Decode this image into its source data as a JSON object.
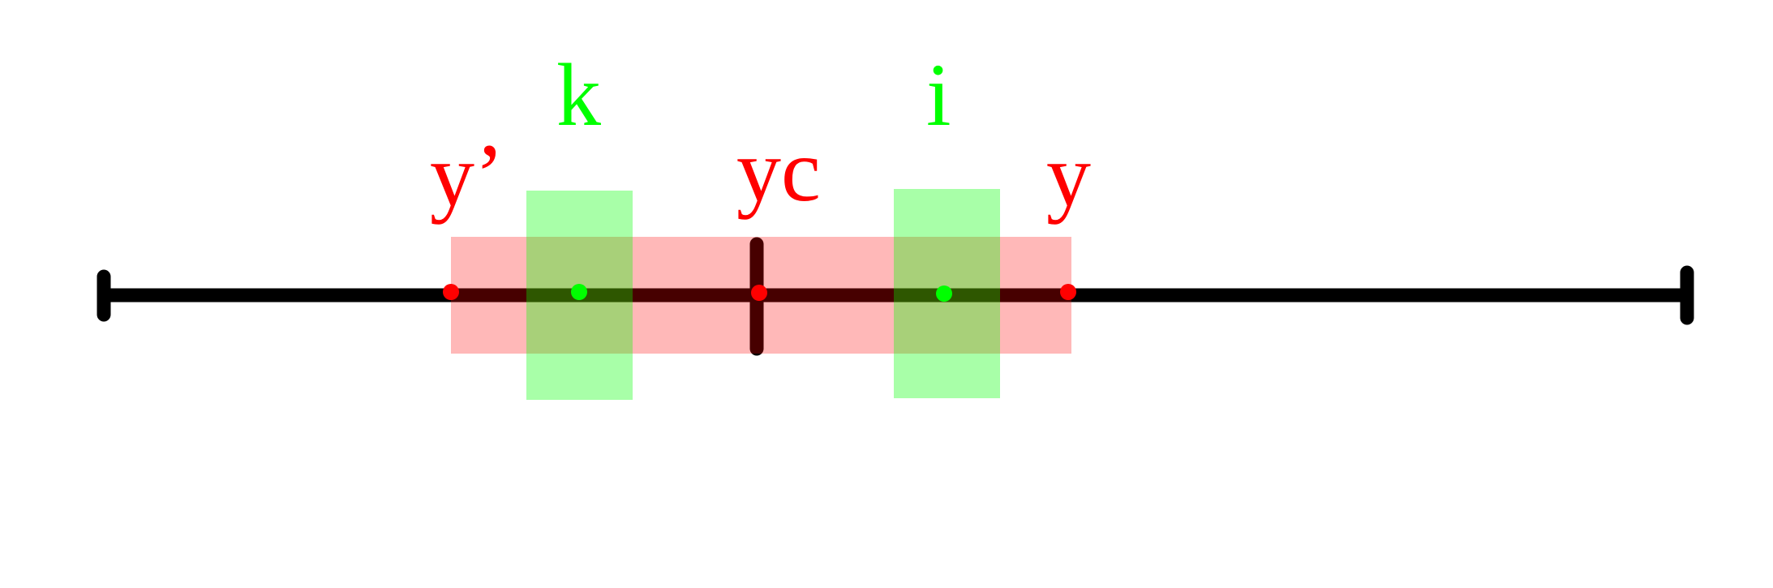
{
  "colors": {
    "background": "#ffffff",
    "axis": "#000000",
    "red": "#ff0000",
    "green": "#00ff00",
    "red_band": "#ff9999",
    "green_band": "#88ff88"
  },
  "labels": {
    "y_prime": "y’",
    "yc": "yc",
    "y": "y",
    "k": "k",
    "i": "i"
  }
}
